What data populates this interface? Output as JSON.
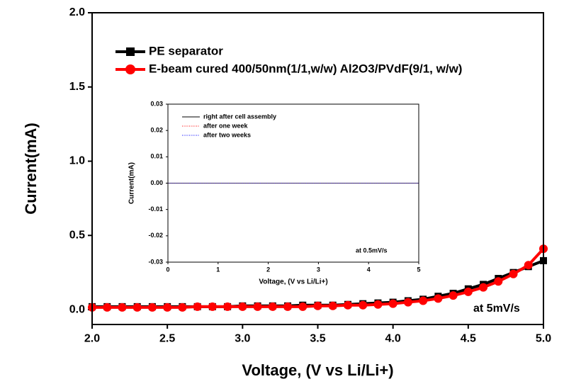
{
  "chart_data": [
    {
      "type": "line",
      "x_label": "Voltage, (V vs Li/Li+)",
      "y_label": "Current(mA)",
      "annotation": "at 5mV/s",
      "x": [
        2.0,
        2.1,
        2.2,
        2.3,
        2.4,
        2.5,
        2.6,
        2.7,
        2.8,
        2.9,
        3.0,
        3.1,
        3.2,
        3.3,
        3.4,
        3.5,
        3.6,
        3.7,
        3.8,
        3.9,
        4.0,
        4.1,
        4.2,
        4.3,
        4.4,
        4.5,
        4.6,
        4.7,
        4.8,
        4.9,
        5.0
      ],
      "series": [
        {
          "name": "PE separator",
          "color": "#000000",
          "marker": "square",
          "linestyle": "solid",
          "values": [
            0.02,
            0.02,
            0.02,
            0.02,
            0.02,
            0.02,
            0.02,
            0.02,
            0.02,
            0.02,
            0.025,
            0.025,
            0.025,
            0.025,
            0.03,
            0.03,
            0.03,
            0.035,
            0.04,
            0.045,
            0.05,
            0.06,
            0.07,
            0.09,
            0.11,
            0.14,
            0.17,
            0.21,
            0.25,
            0.29,
            0.33
          ]
        },
        {
          "name": "E-beam cured 400/50nm(1/1,w/w) Al2O3/PVdF(9/1, w/w)",
          "color": "#ff0000",
          "marker": "circle",
          "linestyle": "solid",
          "values": [
            0.015,
            0.015,
            0.015,
            0.015,
            0.015,
            0.015,
            0.015,
            0.02,
            0.02,
            0.02,
            0.02,
            0.02,
            0.02,
            0.02,
            0.02,
            0.025,
            0.025,
            0.03,
            0.03,
            0.035,
            0.04,
            0.05,
            0.06,
            0.075,
            0.095,
            0.12,
            0.15,
            0.19,
            0.24,
            0.3,
            0.41
          ]
        }
      ],
      "xlim": [
        2.0,
        5.0
      ],
      "xticks": [
        {
          "value": 2.0,
          "label": "2.0"
        },
        {
          "value": 2.5,
          "label": "2.5"
        },
        {
          "value": 3.0,
          "label": "3.0"
        },
        {
          "value": 3.5,
          "label": "3.5"
        },
        {
          "value": 4.0,
          "label": "4.0"
        },
        {
          "value": 4.5,
          "label": "4.5"
        },
        {
          "value": 5.0,
          "label": "5.0"
        }
      ],
      "ylim": [
        -0.1,
        2.0
      ],
      "yticks": [
        {
          "value": 0,
          "label": "0.0"
        },
        0.5,
        {
          "value": 1,
          "label": "1.0"
        },
        1.5,
        {
          "value": 2,
          "label": "2.0"
        }
      ],
      "legend": "upper left"
    },
    {
      "type": "line",
      "x_label": "Voltage, (V vs Li/Li+)",
      "y_label": "Current(mA)",
      "annotation": "at 0.5mV/s",
      "x": [
        0,
        1,
        2,
        3,
        4,
        5
      ],
      "series": [
        {
          "name": "right after cell assembly",
          "color": "#000000",
          "linestyle": "solid",
          "values": [
            0,
            0,
            0,
            0,
            0,
            0
          ]
        },
        {
          "name": "after one week",
          "color": "#ff0000",
          "linestyle": "dotted",
          "values": [
            0,
            0,
            0,
            0,
            0,
            0
          ]
        },
        {
          "name": "after two weeks",
          "color": "#0000ff",
          "linestyle": "dotted",
          "values": [
            0,
            0,
            0,
            0,
            0,
            0
          ]
        }
      ],
      "xlim": [
        0,
        5
      ],
      "xticks": [
        0,
        1,
        2,
        3,
        4,
        5
      ],
      "ylim": [
        -0.03,
        0.03
      ],
      "yticks": [
        -0.03,
        -0.02,
        -0.01,
        {
          "value": 0,
          "label": "0.00"
        },
        0.01,
        0.02,
        0.03
      ],
      "legend": "upper left"
    }
  ]
}
